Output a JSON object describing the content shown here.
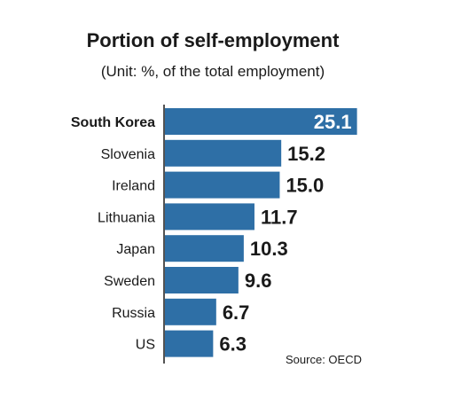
{
  "chart_data": {
    "type": "bar",
    "orientation": "horizontal",
    "title": "Portion of self-employment",
    "subtitle": "(Unit: %, of the total employment)",
    "categories": [
      "South Korea",
      "Slovenia",
      "Ireland",
      "Lithuania",
      "Japan",
      "Sweden",
      "Russia",
      "US"
    ],
    "values": [
      25.1,
      15.2,
      15.0,
      11.7,
      10.3,
      9.6,
      6.7,
      6.3
    ],
    "value_labels": [
      "25.1",
      "15.2",
      "15.0",
      "11.7",
      "10.3",
      "9.6",
      "6.7",
      "6.3"
    ],
    "highlight_category": "South Korea",
    "source": "Source: OECD",
    "bar_color": "#2e6fa6",
    "highlight_label_color": "#ffffff",
    "text_color": "#1a1a1a",
    "grid": false,
    "legend": "none"
  }
}
